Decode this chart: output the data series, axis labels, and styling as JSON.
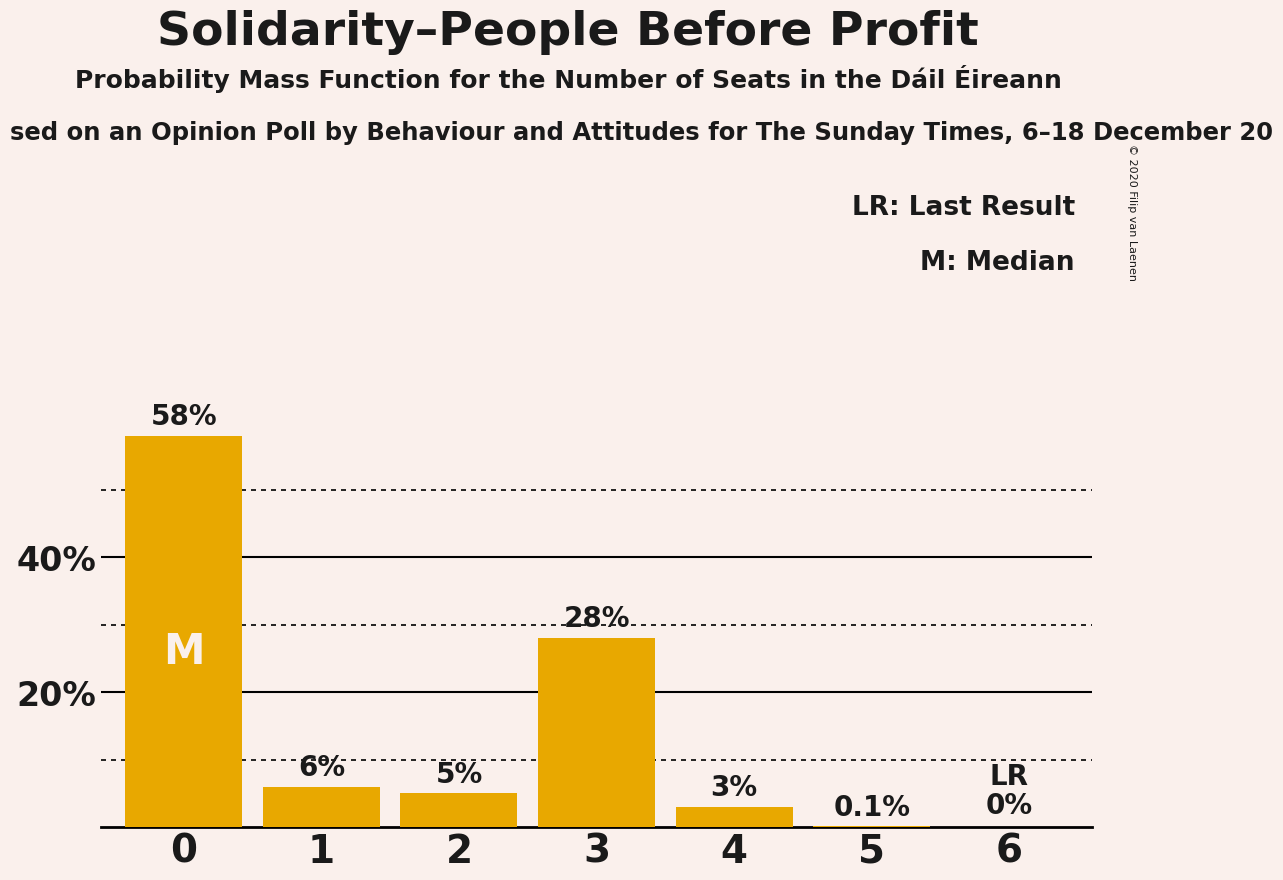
{
  "title": "Solidarity–People Before Profit",
  "subtitle": "Probability Mass Function for the Number of Seats in the Dáil Éireann",
  "subtitle2": "sed on an Opinion Poll by Behaviour and Attitudes for The Sunday Times, 6–18 December 20",
  "copyright": "© 2020 Filip van Laenen",
  "categories": [
    0,
    1,
    2,
    3,
    4,
    5,
    6
  ],
  "values": [
    58,
    6,
    5,
    28,
    3,
    0.1,
    0
  ],
  "labels": [
    "58%",
    "6%",
    "5%",
    "28%",
    "3%",
    "0.1%",
    "0%"
  ],
  "bar_color": "#E8A800",
  "background_color": "#FAF0EC",
  "text_color": "#1a1a1a",
  "dotted_lines": [
    10,
    30,
    50
  ],
  "solid_lines": [
    20,
    40
  ],
  "ylim": [
    0,
    63
  ],
  "legend_lr": "LR: Last Result",
  "legend_m": "M: Median",
  "median_label": "M",
  "lr_label": "LR"
}
